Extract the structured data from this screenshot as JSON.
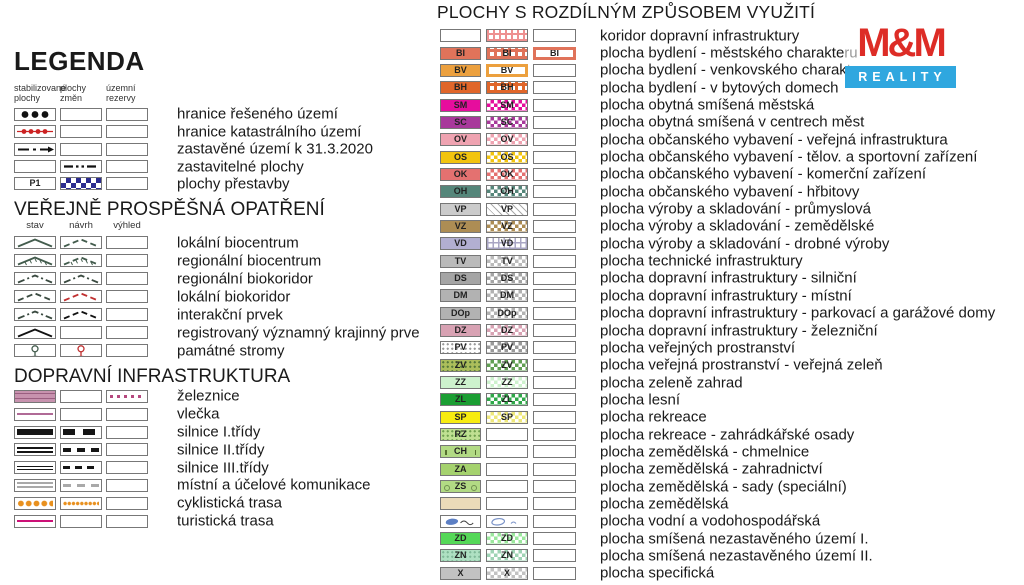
{
  "logo": {
    "line1": "M&M",
    "line2": "REALITY",
    "red": "#DD2C26",
    "blue": "#2FA7DF"
  },
  "left": {
    "title": "LEGENDA",
    "group1": {
      "headers": [
        "stabilizované\nplochy",
        "plochy\nzměn",
        "územní\nrezervy"
      ],
      "rows": [
        {
          "label": "hranice řešeného území",
          "sym": [
            {
              "t": "dots3"
            },
            {
              "t": "empty"
            },
            {
              "t": "empty"
            }
          ]
        },
        {
          "label": "hranice katastrálního území",
          "sym": [
            {
              "t": "dotline",
              "c": "#CC2222"
            },
            {
              "t": "empty"
            },
            {
              "t": "empty"
            }
          ]
        },
        {
          "label": "zastavěné území k 31.3.2020",
          "sym": [
            {
              "t": "dashdotarrow",
              "c": "#111111"
            },
            {
              "t": "empty"
            },
            {
              "t": "empty"
            }
          ]
        },
        {
          "label": "zastavitelné plochy",
          "sym": [
            {
              "t": "empty"
            },
            {
              "t": "dashdotdot",
              "c": "#111111"
            },
            {
              "t": "empty"
            }
          ]
        },
        {
          "label": "plochy přestavby",
          "sym": [
            {
              "t": "empty",
              "v": "P1"
            },
            {
              "t": "checker",
              "c": "#2B2B8F",
              "s": 10
            },
            {
              "t": "empty"
            }
          ]
        }
      ]
    },
    "group2": {
      "title": "VEŘEJNĚ PROSPĚŠNÁ OPATŘENÍ",
      "headers": [
        "stav",
        "návrh",
        "výhled"
      ],
      "rows": [
        {
          "label": "lokální biocentrum",
          "sym": [
            {
              "t": "chev",
              "c": "#435C4D",
              "d": "solid"
            },
            {
              "t": "chev",
              "c": "#435C4D",
              "d": "dash"
            },
            {
              "t": "empty"
            }
          ]
        },
        {
          "label": "regionální biocentrum",
          "sym": [
            {
              "t": "chevh",
              "c": "#435C4D",
              "d": "solid"
            },
            {
              "t": "chevh",
              "c": "#435C4D",
              "d": "dash"
            },
            {
              "t": "empty"
            }
          ]
        },
        {
          "label": "regionální biokoridor",
          "sym": [
            {
              "t": "chev",
              "c": "#3A4A40",
              "d": "dashdot"
            },
            {
              "t": "chev",
              "c": "#3A4A40",
              "d": "dashdot"
            },
            {
              "t": "empty"
            }
          ]
        },
        {
          "label": "lokální biokoridor",
          "sym": [
            {
              "t": "chev",
              "c": "#3A4A40",
              "d": "dash"
            },
            {
              "t": "chev",
              "c": "#C03030",
              "d": "dash"
            },
            {
              "t": "empty"
            }
          ]
        },
        {
          "label": "interakční prvek",
          "sym": [
            {
              "t": "chev",
              "c": "#3A4A40",
              "d": "dashdot"
            },
            {
              "t": "chev",
              "c": "#111111",
              "d": "dash"
            },
            {
              "t": "empty"
            }
          ]
        },
        {
          "label": "registrovaný významný krajinný prve",
          "sym": [
            {
              "t": "chev",
              "c": "#111111",
              "d": "solid"
            },
            {
              "t": "empty"
            },
            {
              "t": "empty"
            }
          ]
        },
        {
          "label": "památné stromy",
          "sym": [
            {
              "t": "tree",
              "c": "#435C4D"
            },
            {
              "t": "tree",
              "c": "#C03030"
            },
            {
              "t": "empty"
            }
          ]
        }
      ]
    },
    "group3": {
      "title": "DOPRAVNÍ INFRASTRUKTURA",
      "rows": [
        {
          "label": "železnice",
          "sym": [
            {
              "t": "railband",
              "c": "#C792AE"
            },
            {
              "t": "empty"
            },
            {
              "t": "raildots",
              "c": "#B5487E"
            }
          ]
        },
        {
          "label": "vlečka",
          "sym": [
            {
              "t": "hline",
              "c": "#B06A96",
              "h": 2
            },
            {
              "t": "empty"
            },
            {
              "t": "empty"
            }
          ]
        },
        {
          "label": "silnice I.třídy",
          "sym": [
            {
              "t": "hline",
              "c": "#151515",
              "h": 6
            },
            {
              "t": "dashline",
              "c": "#151515",
              "h": 6,
              "a": 12,
              "b": 20
            },
            {
              "t": "empty"
            }
          ]
        },
        {
          "label": "silnice II.třídy",
          "sym": [
            {
              "t": "dblline",
              "c": "#151515"
            },
            {
              "t": "dashline",
              "c": "#151515",
              "h": 4,
              "a": 8,
              "b": 14
            },
            {
              "t": "empty"
            }
          ]
        },
        {
          "label": "silnice III.třídy",
          "sym": [
            {
              "t": "dblline",
              "c": "#151515",
              "thin": true
            },
            {
              "t": "dashline",
              "c": "#151515",
              "h": 3,
              "a": 7,
              "b": 12
            },
            {
              "t": "empty"
            }
          ]
        },
        {
          "label": "místní a účelové komunikace",
          "sym": [
            {
              "t": "dblline",
              "c": "#A9A9A9"
            },
            {
              "t": "dashline",
              "c": "#A9A9A9",
              "h": 3,
              "a": 8,
              "b": 14
            },
            {
              "t": "empty"
            }
          ]
        },
        {
          "label": "cyklistická trasa",
          "sym": [
            {
              "t": "dotrow",
              "c": "#E8901E",
              "r": 2.6
            },
            {
              "t": "dotrow",
              "c": "#E8901E",
              "r": 1.4
            },
            {
              "t": "empty"
            }
          ]
        },
        {
          "label": "turistická trasa",
          "sym": [
            {
              "t": "hline",
              "c": "#CC1177",
              "h": 2
            },
            {
              "t": "empty"
            },
            {
              "t": "empty"
            }
          ]
        }
      ]
    }
  },
  "right": {
    "title": "PLOCHY S ROZDÍLNÝM ZPŮSOBEM VYUŽITÍ",
    "rows": [
      {
        "label": "koridor dopravní infrastruktury",
        "sym": [
          {
            "t": "empty"
          },
          {
            "t": "grid",
            "c": "#EE9090",
            "lw": 2
          },
          {
            "t": "empty"
          }
        ]
      },
      {
        "label": "plocha bydlení - městského charakteru",
        "sym": [
          {
            "t": "solid",
            "c": "#E0735A",
            "v": "BI"
          },
          {
            "t": "grid",
            "c": "#E0735A",
            "lw": 3,
            "v": "BI"
          },
          {
            "t": "frame",
            "c": "#E0735A",
            "v": "BI"
          }
        ]
      },
      {
        "label": "plocha bydlení - venkovského charakteru",
        "sym": [
          {
            "t": "solid",
            "c": "#ECA03E",
            "v": "BV"
          },
          {
            "t": "frame",
            "c": "#ECA03E",
            "v": "BV"
          },
          {
            "t": "empty"
          }
        ]
      },
      {
        "label": "plocha bydlení - v bytových domech",
        "sym": [
          {
            "t": "solid",
            "c": "#E0662A",
            "v": "BH"
          },
          {
            "t": "grid",
            "c": "#E0662A",
            "lw": 3,
            "v": "BH"
          },
          {
            "t": "empty"
          }
        ]
      },
      {
        "label": "plocha obytná smíšená městská",
        "sym": [
          {
            "t": "solid",
            "c": "#E60D9D",
            "v": "SM"
          },
          {
            "t": "checker",
            "c": "#E60D9D",
            "v": "SM"
          },
          {
            "t": "empty"
          }
        ]
      },
      {
        "label": "plocha obytná smíšená v centrech měst",
        "sym": [
          {
            "t": "solid",
            "c": "#A8399B",
            "v": "SC"
          },
          {
            "t": "checker",
            "c": "#A8399B",
            "v": "SC"
          },
          {
            "t": "empty"
          }
        ]
      },
      {
        "label": "plocha občanského vybavení - veřejná infrastruktura",
        "sym": [
          {
            "t": "solid",
            "c": "#EFA3B1",
            "v": "OV"
          },
          {
            "t": "checker",
            "c": "#EFA3B1",
            "v": "OV"
          },
          {
            "t": "empty"
          }
        ]
      },
      {
        "label": "plocha občanského vybavení - tělov. a sportovní zařízení",
        "sym": [
          {
            "t": "solid",
            "c": "#F2C40F",
            "v": "OS"
          },
          {
            "t": "checker",
            "c": "#F2C40F",
            "v": "OS"
          },
          {
            "t": "empty"
          }
        ]
      },
      {
        "label": "plocha občanského vybavení - komerční zařízení",
        "sym": [
          {
            "t": "solid",
            "c": "#E47170",
            "v": "OK"
          },
          {
            "t": "checker",
            "c": "#E47170",
            "v": "OK"
          },
          {
            "t": "empty"
          }
        ]
      },
      {
        "label": "plocha občanského vybavení - hřbitovy",
        "sym": [
          {
            "t": "solid",
            "c": "#55867A",
            "v": "OH"
          },
          {
            "t": "checker",
            "c": "#55867A",
            "v": "OH"
          },
          {
            "t": "empty"
          }
        ]
      },
      {
        "label": "plocha výroby a skladování - průmyslová",
        "sym": [
          {
            "t": "solid",
            "c": "#CBCBCB",
            "v": "VP"
          },
          {
            "t": "hatch",
            "c": "#AAAAAA",
            "v": "VP"
          },
          {
            "t": "empty"
          }
        ]
      },
      {
        "label": "plocha výroby a skladování - zemědělské",
        "sym": [
          {
            "t": "solid",
            "c": "#AD8D54",
            "v": "VZ"
          },
          {
            "t": "checker",
            "c": "#AD8D54",
            "v": "VZ"
          },
          {
            "t": "empty"
          }
        ]
      },
      {
        "label": "plocha výroby a skladování - drobné výroby",
        "sym": [
          {
            "t": "solid",
            "c": "#B2AFD1",
            "v": "VD"
          },
          {
            "t": "grid",
            "c": "#A9A6C4",
            "lw": 1.5,
            "v": "VD"
          },
          {
            "t": "empty"
          }
        ]
      },
      {
        "label": "plocha technické infrastruktury",
        "sym": [
          {
            "t": "solid",
            "c": "#BABABA",
            "v": "TV"
          },
          {
            "t": "checker",
            "c": "#BABABA",
            "v": "TV"
          },
          {
            "t": "empty"
          }
        ]
      },
      {
        "label": "plocha dopravní infrastruktury - silniční",
        "sym": [
          {
            "t": "solid",
            "c": "#A5A5A5",
            "v": "DS"
          },
          {
            "t": "checker",
            "c": "#A5A5A5",
            "v": "DS"
          },
          {
            "t": "empty"
          }
        ]
      },
      {
        "label": "plocha dopravní infrastruktury - místní",
        "sym": [
          {
            "t": "solid",
            "c": "#B2B2B2",
            "v": "DM"
          },
          {
            "t": "checker",
            "c": "#B2B2B2",
            "v": "DM"
          },
          {
            "t": "empty"
          }
        ]
      },
      {
        "label": "plocha dopravní infrastruktury - parkovací a garážové domy",
        "sym": [
          {
            "t": "solid",
            "c": "#B2B2B2",
            "v": "DOp"
          },
          {
            "t": "checker",
            "c": "#B2B2B2",
            "v": "DOp"
          },
          {
            "t": "empty"
          }
        ]
      },
      {
        "label": "plocha dopravní infrastruktury - železniční",
        "sym": [
          {
            "t": "solid",
            "c": "#D8A2B3",
            "v": "DZ"
          },
          {
            "t": "checker",
            "c": "#D8A2B3",
            "v": "DZ"
          },
          {
            "t": "empty"
          }
        ]
      },
      {
        "label": "plocha veřejných prostranství",
        "sym": [
          {
            "t": "dots",
            "c": "#FFFFFF",
            "d": "#999999",
            "v": "PV"
          },
          {
            "t": "checker",
            "c": "#9A9A9A",
            "v": "PV"
          },
          {
            "t": "empty"
          }
        ]
      },
      {
        "label": "plocha veřejná prostranství - veřejná zeleň",
        "sym": [
          {
            "t": "dots",
            "c": "#ACBE5B",
            "d": "#55783A",
            "v": "ZV"
          },
          {
            "t": "checker",
            "c": "#61A053",
            "v": "ZV"
          },
          {
            "t": "empty"
          }
        ]
      },
      {
        "label": "plocha zeleně zahrad",
        "sym": [
          {
            "t": "solid",
            "c": "#CDF2CD",
            "v": "ZZ"
          },
          {
            "t": "checker",
            "c": "#CDF2CD",
            "v": "ZZ"
          },
          {
            "t": "empty"
          }
        ]
      },
      {
        "label": "plocha lesní",
        "sym": [
          {
            "t": "solid",
            "c": "#1B9E33",
            "v": "ZL"
          },
          {
            "t": "checker",
            "c": "#2FA849",
            "v": "ZL"
          },
          {
            "t": "empty"
          }
        ]
      },
      {
        "label": "plocha rekreace",
        "sym": [
          {
            "t": "solid",
            "c": "#F7EC10",
            "v": "SP"
          },
          {
            "t": "checker",
            "c": "#EFE87A",
            "v": "SP"
          },
          {
            "t": "empty"
          }
        ]
      },
      {
        "label": "plocha rekreace - zahrádkářské osady",
        "sym": [
          {
            "t": "dots",
            "c": "#BFE092",
            "d": "#6FA04F",
            "v": "RZ"
          },
          {
            "t": "empty"
          },
          {
            "t": "empty"
          }
        ]
      },
      {
        "label": "plocha zemědělská - chmelnice",
        "sym": [
          {
            "t": "marks",
            "c": "#B2DA84",
            "v": "CH"
          },
          {
            "t": "empty"
          },
          {
            "t": "empty"
          }
        ]
      },
      {
        "label": "plocha zemědělská - zahradnictví",
        "sym": [
          {
            "t": "solid",
            "c": "#A5D26E",
            "v": "ZA"
          },
          {
            "t": "empty"
          },
          {
            "t": "empty"
          }
        ]
      },
      {
        "label": "plocha zemědělská - sady (speciální)",
        "sym": [
          {
            "t": "circles",
            "c": "#B2DA84",
            "v": "ZS"
          },
          {
            "t": "empty"
          },
          {
            "t": "empty"
          }
        ]
      },
      {
        "label": "plocha zemědělská",
        "sym": [
          {
            "t": "solid",
            "c": "#EBDBB9"
          },
          {
            "t": "empty"
          },
          {
            "t": "empty"
          }
        ]
      },
      {
        "label": "plocha vodní a vodohospodářská",
        "sym": [
          {
            "t": "water"
          },
          {
            "t": "waterol"
          },
          {
            "t": "empty"
          }
        ]
      },
      {
        "label": "plocha smíšená nezastavěného území I.",
        "sym": [
          {
            "t": "solid",
            "c": "#55D858",
            "v": "ZD"
          },
          {
            "t": "checker",
            "c": "#9BE89D",
            "v": "ZD"
          },
          {
            "t": "empty"
          }
        ]
      },
      {
        "label": "plocha smíšená nezastavěného území II.",
        "sym": [
          {
            "t": "dots",
            "c": "#AEE0C2",
            "d": "#7FB898",
            "v": "ZN"
          },
          {
            "t": "checker",
            "c": "#9FD4B5",
            "v": "ZN"
          },
          {
            "t": "empty"
          }
        ]
      },
      {
        "label": "plocha specifická",
        "sym": [
          {
            "t": "solid",
            "c": "#C2C2C2",
            "v": "X"
          },
          {
            "t": "checker",
            "c": "#C2C2C2",
            "v": "X"
          },
          {
            "t": "empty"
          }
        ]
      }
    ]
  }
}
